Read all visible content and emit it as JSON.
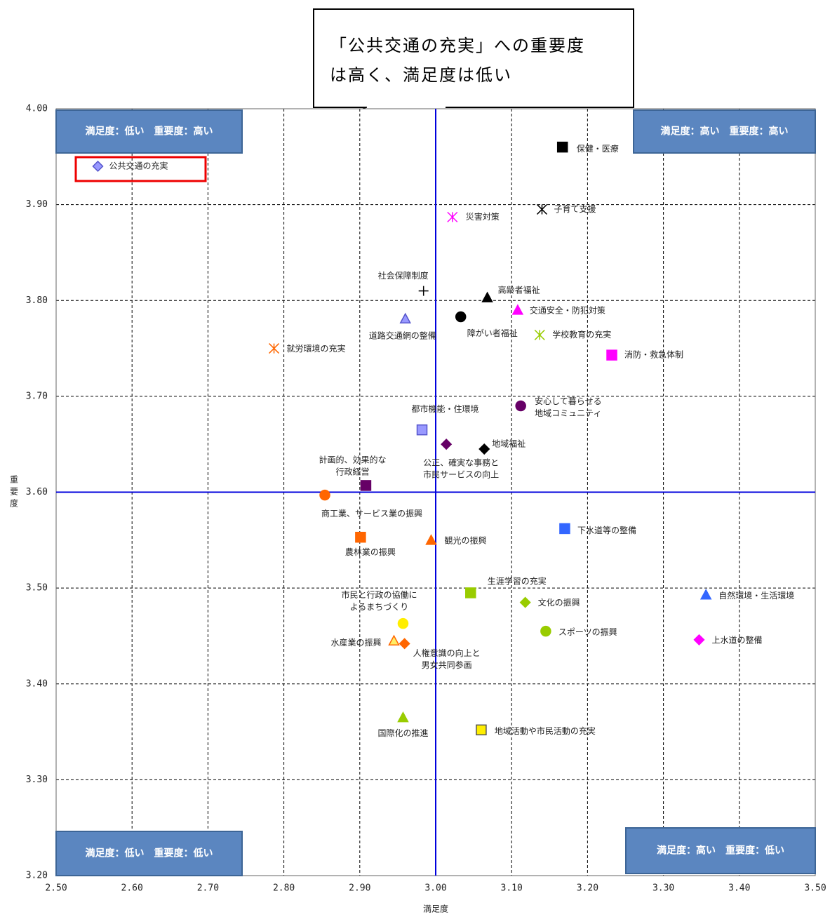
{
  "chart_data": {
    "type": "scatter",
    "xlabel": "満足度",
    "ylabel": "重要度",
    "xlim": [
      2.5,
      3.5
    ],
    "ylim": [
      3.2,
      4.0
    ],
    "xticks": [
      {
        "value": 2.5,
        "label": "2.50"
      },
      {
        "value": 2.6,
        "label": "2.60"
      },
      {
        "value": 2.7,
        "label": "2.70"
      },
      {
        "value": 2.8,
        "label": "2.80"
      },
      {
        "value": 2.9,
        "label": "2.90"
      },
      {
        "value": 3.0,
        "label": "3.00"
      },
      {
        "value": 3.1,
        "label": "3.10"
      },
      {
        "value": 3.2,
        "label": "3.20"
      },
      {
        "value": 3.3,
        "label": "3.30"
      },
      {
        "value": 3.4,
        "label": "3.40"
      },
      {
        "value": 3.5,
        "label": "3.50"
      }
    ],
    "yticks": [
      {
        "value": 3.2,
        "label": "3.20"
      },
      {
        "value": 3.3,
        "label": "3.30"
      },
      {
        "value": 3.4,
        "label": "3.40"
      },
      {
        "value": 3.5,
        "label": "3.50"
      },
      {
        "value": 3.6,
        "label": "3.60"
      },
      {
        "value": 3.7,
        "label": "3.70"
      },
      {
        "value": 3.8,
        "label": "3.80"
      },
      {
        "value": 3.9,
        "label": "3.90"
      },
      {
        "value": 4.0,
        "label": "4.00"
      }
    ],
    "grid": true,
    "reference_lines": {
      "x": 3.0,
      "y": 3.6,
      "color": "#0000dd"
    },
    "quadrants": {
      "top_left": "満足度：低い　重要度：高い",
      "top_right": "満足度：高い　重要度：高い",
      "bottom_left": "満足度：低い　重要度：低い",
      "bottom_right": "満足度：高い　重要度：低い"
    },
    "annotation": [
      "「公共交通の充実」への重要度",
      "は高く、満足度は低い"
    ],
    "points": [
      {
        "label": [
          "公共交通の充実"
        ],
        "x": 2.555,
        "y": 3.94,
        "marker": "diamond",
        "color": "#9999ff",
        "edgecolor": "#5555cc"
      },
      {
        "label": [
          "保健・医療"
        ],
        "x": 3.167,
        "y": 3.96,
        "marker": "square",
        "color": "#000000"
      },
      {
        "label": [
          "子育て支援"
        ],
        "x": 3.14,
        "y": 3.895,
        "marker": "asterisk",
        "color": "#000000"
      },
      {
        "label": [
          "災害対策"
        ],
        "x": 3.022,
        "y": 3.887,
        "marker": "asterisk",
        "color": "#ff00ff"
      },
      {
        "label": [
          "社会保障制度"
        ],
        "x": 2.984,
        "y": 3.81,
        "marker": "plus",
        "color": "#000000"
      },
      {
        "label": [
          "高齢者福祉"
        ],
        "x": 3.068,
        "y": 3.803,
        "marker": "triangle",
        "color": "#000000"
      },
      {
        "label": [
          "障がい者福祉"
        ],
        "x": 3.033,
        "y": 3.783,
        "marker": "circle",
        "color": "#000000"
      },
      {
        "label": [
          "道路交通網の整備"
        ],
        "x": 2.96,
        "y": 3.781,
        "marker": "triangle",
        "color": "#9999ff",
        "edgecolor": "#5555cc"
      },
      {
        "label": [
          "交通安全・防犯対策"
        ],
        "x": 3.108,
        "y": 3.79,
        "marker": "triangle",
        "color": "#ff00ff"
      },
      {
        "label": [
          "学校教育の充実"
        ],
        "x": 3.137,
        "y": 3.764,
        "marker": "asterisk",
        "color": "#99cc00"
      },
      {
        "label": [
          "就労環境の充実"
        ],
        "x": 2.787,
        "y": 3.75,
        "marker": "asterisk",
        "color": "#ff6600"
      },
      {
        "label": [
          "消防・救急体制"
        ],
        "x": 3.232,
        "y": 3.743,
        "marker": "square",
        "color": "#ff00ff"
      },
      {
        "label": [
          "安心して暮らせる",
          "地域コミュニティ"
        ],
        "x": 3.112,
        "y": 3.69,
        "marker": "circle",
        "color": "#660066"
      },
      {
        "label": [
          "都市機能・住環境"
        ],
        "x": 2.982,
        "y": 3.665,
        "marker": "square",
        "color": "#9999ff",
        "edgecolor": "#5555cc"
      },
      {
        "label": [
          "公正、確実な事務と",
          "市民サービスの向上"
        ],
        "x": 3.014,
        "y": 3.65,
        "marker": "diamond",
        "color": "#660066"
      },
      {
        "label": [
          "地域福祉"
        ],
        "x": 3.064,
        "y": 3.645,
        "marker": "diamond",
        "color": "#000000"
      },
      {
        "label": [
          "計画的、効果的な",
          "行政経営"
        ],
        "x": 2.908,
        "y": 3.607,
        "marker": "square",
        "color": "#660066"
      },
      {
        "label": [
          "商工業、サービス業の振興"
        ],
        "x": 2.854,
        "y": 3.597,
        "marker": "circle",
        "color": "#ff6600"
      },
      {
        "label": [
          "下水道等の整備"
        ],
        "x": 3.17,
        "y": 3.562,
        "marker": "square",
        "color": "#3366ff"
      },
      {
        "label": [
          "農林業の振興"
        ],
        "x": 2.901,
        "y": 3.553,
        "marker": "square",
        "color": "#ff6600"
      },
      {
        "label": [
          "観光の振興"
        ],
        "x": 2.994,
        "y": 3.55,
        "marker": "triangle",
        "color": "#ff6600"
      },
      {
        "label": [
          "生涯学習の充実"
        ],
        "x": 3.046,
        "y": 3.495,
        "marker": "square",
        "color": "#99cc00"
      },
      {
        "label": [
          "文化の振興"
        ],
        "x": 3.118,
        "y": 3.485,
        "marker": "diamond",
        "color": "#99cc00"
      },
      {
        "label": [
          "自然環境・生活環境"
        ],
        "x": 3.356,
        "y": 3.493,
        "marker": "triangle",
        "color": "#3366ff"
      },
      {
        "label": [
          "市民と行政の協働に",
          "よるまちづくり"
        ],
        "x": 2.957,
        "y": 3.463,
        "marker": "circle",
        "color": "#ffee00"
      },
      {
        "label": [
          "スポーツの振興"
        ],
        "x": 3.145,
        "y": 3.455,
        "marker": "circle",
        "color": "#99cc00"
      },
      {
        "label": [
          "上水道の整備"
        ],
        "x": 3.347,
        "y": 3.446,
        "marker": "diamond",
        "color": "#ff00ff"
      },
      {
        "label": [
          "水産業の振興"
        ],
        "x": 2.945,
        "y": 3.445,
        "marker": "triangle",
        "color": "#ffee66",
        "edgecolor": "#ff6600"
      },
      {
        "label": [
          "人権意識の向上と",
          "男女共同参画"
        ],
        "x": 2.959,
        "y": 3.442,
        "marker": "diamond",
        "color": "#ff6600"
      },
      {
        "label": [
          "国際化の推進"
        ],
        "x": 2.957,
        "y": 3.365,
        "marker": "triangle",
        "color": "#99cc00"
      },
      {
        "label": [
          "地域活動や市民活動の充実"
        ],
        "x": 3.06,
        "y": 3.352,
        "marker": "square",
        "color": "#ffee00",
        "edgecolor": "#555555"
      }
    ]
  }
}
